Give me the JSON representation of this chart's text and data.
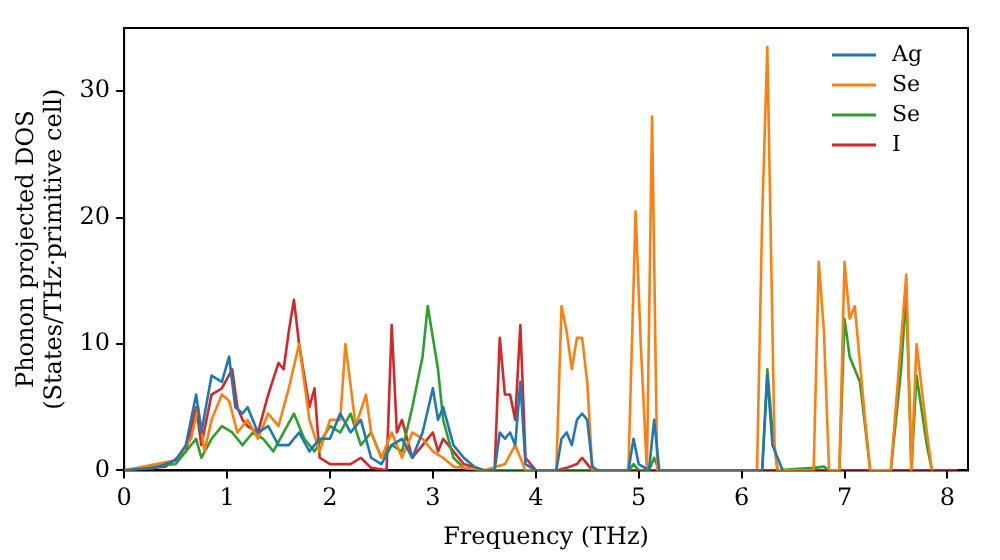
{
  "chart_data": {
    "type": "line",
    "xlabel": "Frequency (THz)",
    "ylabel": "Phonon projected DOS\n(States/THz·primitive cell)",
    "xlim": [
      0,
      8.2
    ],
    "ylim": [
      0,
      35
    ],
    "xticks": [
      0,
      1,
      2,
      3,
      4,
      5,
      6,
      7,
      8
    ],
    "yticks": [
      0,
      10,
      20,
      30
    ],
    "grid": false,
    "legend": "top right",
    "marker": "none",
    "line_style": "solid",
    "series": [
      {
        "name": "Ag",
        "color": "#1f77b4",
        "x": [
          0,
          0.3,
          0.5,
          0.6,
          0.7,
          0.75,
          0.85,
          0.95,
          1.02,
          1.08,
          1.15,
          1.2,
          1.3,
          1.4,
          1.5,
          1.6,
          1.7,
          1.8,
          1.9,
          2.0,
          2.1,
          2.2,
          2.3,
          2.4,
          2.5,
          2.6,
          2.7,
          2.8,
          2.9,
          3.0,
          3.05,
          3.1,
          3.2,
          3.3,
          3.4,
          3.5,
          3.6,
          3.65,
          3.7,
          3.75,
          3.8,
          3.85,
          3.9,
          4.0,
          4.2,
          4.25,
          4.3,
          4.35,
          4.4,
          4.45,
          4.5,
          4.55,
          4.6,
          4.9,
          4.95,
          5.0,
          5.1,
          5.15,
          5.2,
          6.2,
          6.25,
          6.3,
          6.4
        ],
        "values": [
          0,
          0.2,
          0.8,
          2,
          6,
          3,
          7.5,
          7,
          9,
          5,
          4.5,
          5,
          3,
          3.5,
          2,
          2,
          3,
          1.5,
          2.5,
          2.5,
          4.5,
          3,
          4,
          1,
          0.5,
          2,
          2.5,
          1,
          3,
          6.5,
          4,
          5,
          2,
          1,
          0.3,
          0,
          0,
          3,
          2.5,
          3,
          2,
          7,
          0.5,
          0,
          0,
          2.5,
          3,
          2,
          4,
          4.5,
          4,
          0.3,
          0,
          0,
          2.5,
          0.5,
          0,
          4,
          0,
          0,
          7.5,
          2,
          0
        ]
      },
      {
        "name": "Se",
        "color": "#ff7f0e",
        "x": [
          0,
          0.5,
          0.65,
          0.72,
          0.78,
          0.85,
          0.95,
          1.02,
          1.1,
          1.2,
          1.3,
          1.4,
          1.5,
          1.6,
          1.7,
          1.8,
          1.9,
          2.0,
          2.1,
          2.15,
          2.25,
          2.35,
          2.4,
          2.5,
          2.6,
          2.7,
          2.8,
          2.9,
          3.0,
          3.1,
          3.2,
          3.5,
          3.7,
          3.8,
          3.85,
          3.9,
          4.2,
          4.25,
          4.3,
          4.35,
          4.4,
          4.45,
          4.5,
          4.55,
          4.9,
          4.97,
          5.02,
          5.08,
          5.13,
          5.18,
          6.15,
          6.2,
          6.25,
          6.32,
          6.35,
          6.7,
          6.75,
          6.8,
          6.85,
          6.95,
          7.0,
          7.05,
          7.1,
          7.2,
          7.25,
          7.45,
          7.6,
          7.65,
          7.7,
          7.8,
          7.85
        ],
        "values": [
          0,
          0.8,
          2.5,
          5,
          1.5,
          4,
          6,
          5.5,
          3,
          4,
          2.5,
          4.5,
          3.5,
          6.5,
          10,
          4,
          1.5,
          4,
          4,
          10,
          3.5,
          6,
          3,
          1,
          3,
          1,
          3,
          2.5,
          1.5,
          1,
          0.3,
          0,
          0.5,
          2,
          1,
          0,
          0,
          13,
          11,
          8,
          10.5,
          10.5,
          7,
          0,
          0,
          20.5,
          10,
          0,
          28,
          0,
          0,
          20,
          33.5,
          2,
          0,
          0,
          16.5,
          11,
          0,
          0,
          16.5,
          12,
          13,
          4,
          0,
          0,
          15.5,
          0,
          10,
          3,
          0
        ]
      },
      {
        "name": "Se",
        "color": "#2ca02c",
        "x": [
          0,
          0.5,
          0.7,
          0.75,
          0.85,
          0.95,
          1.05,
          1.15,
          1.25,
          1.35,
          1.45,
          1.55,
          1.65,
          1.75,
          1.85,
          2.0,
          2.1,
          2.2,
          2.3,
          2.4,
          2.5,
          2.6,
          2.7,
          2.8,
          2.9,
          2.95,
          3.05,
          3.1,
          3.2,
          3.3,
          3.5,
          4.9,
          4.95,
          5.0,
          5.1,
          5.15,
          5.2,
          6.2,
          6.25,
          6.3,
          6.35,
          6.7,
          6.8,
          6.85,
          6.95,
          7.0,
          7.05,
          7.15,
          7.25,
          7.45,
          7.55,
          7.6,
          7.65,
          7.7,
          7.8,
          7.85
        ],
        "values": [
          0,
          0.5,
          2.5,
          1,
          2.5,
          3.5,
          3,
          2,
          3,
          2.5,
          1.5,
          3,
          4.5,
          2.5,
          1.5,
          3.5,
          3,
          4.5,
          2,
          3,
          1,
          2,
          1.5,
          5,
          9,
          13,
          8,
          4,
          1,
          0.2,
          0,
          0,
          0.5,
          0,
          0,
          1,
          0,
          0,
          8,
          3,
          0,
          0.2,
          0.3,
          0,
          0,
          12,
          9,
          7,
          0,
          0,
          8,
          14,
          0,
          7.5,
          2,
          0
        ]
      },
      {
        "name": "I",
        "color": "#d62728",
        "x": [
          0,
          0.4,
          0.6,
          0.7,
          0.75,
          0.85,
          0.95,
          1.05,
          1.1,
          1.15,
          1.2,
          1.3,
          1.4,
          1.5,
          1.55,
          1.6,
          1.65,
          1.7,
          1.8,
          1.85,
          1.9,
          2.0,
          2.2,
          2.3,
          2.4,
          2.55,
          2.6,
          2.65,
          2.7,
          2.8,
          2.9,
          3.0,
          3.05,
          3.1,
          3.2,
          3.3,
          3.5,
          3.6,
          3.65,
          3.7,
          3.75,
          3.8,
          3.85,
          3.9,
          4.0,
          4.2,
          4.3,
          4.4,
          4.45,
          4.5,
          4.55,
          8.1
        ],
        "values": [
          0,
          0.3,
          1.5,
          5,
          2,
          6,
          6.5,
          8,
          5,
          4,
          3.5,
          3,
          6,
          8.5,
          8,
          11,
          13.5,
          10,
          5,
          6.5,
          1,
          0.5,
          0.5,
          1,
          0.2,
          0,
          11.5,
          3,
          4,
          1,
          2,
          3,
          1.5,
          2.5,
          1.5,
          0.5,
          0,
          0,
          10.5,
          6,
          6,
          4,
          11.5,
          1,
          0,
          0,
          0.2,
          0.5,
          1,
          0.5,
          0,
          0
        ]
      }
    ]
  }
}
